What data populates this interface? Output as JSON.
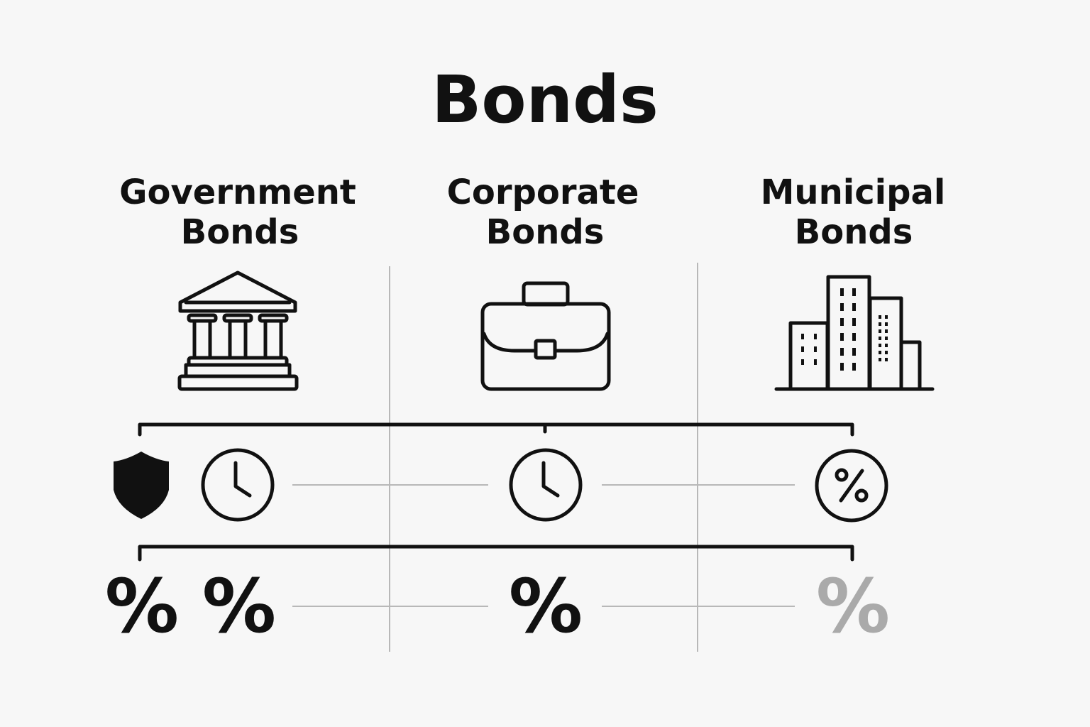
{
  "title": "Bonds",
  "categories": [
    {
      "line1": "Government",
      "line2": "Bonds",
      "icon": "bank-icon"
    },
    {
      "line1": "Corporate",
      "line2": "Bonds",
      "icon": "briefcase-icon"
    },
    {
      "line1": "Municipal",
      "line2": "Bonds",
      "icon": "buildings-icon"
    }
  ],
  "row1_icons": [
    "shield-icon",
    "clock-icon",
    "clock-icon",
    "percent-circle-icon"
  ],
  "row2": {
    "symbol": "%",
    "muted_color": "#aaaaaa",
    "color": "#111111"
  }
}
